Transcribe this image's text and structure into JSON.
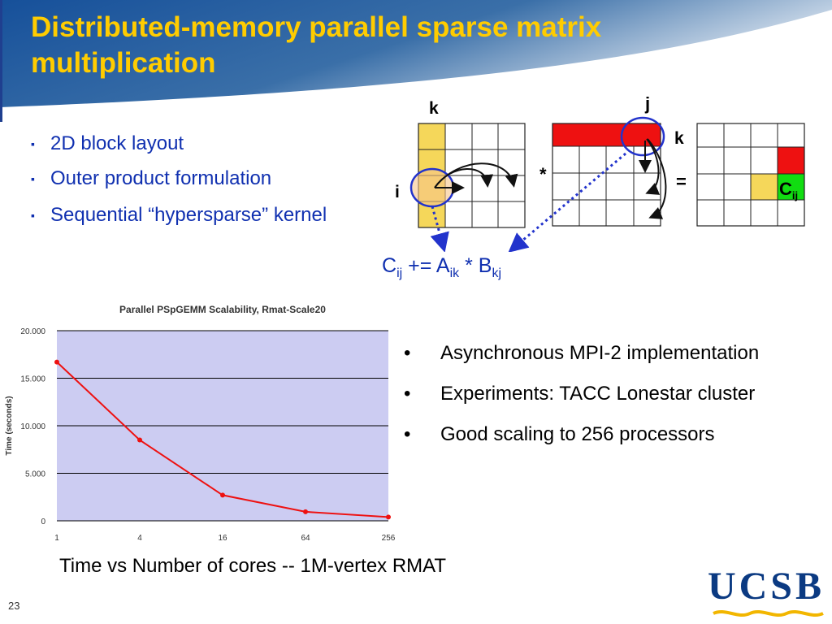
{
  "slide": {
    "title": "Distributed-memory parallel sparse matrix multiplication",
    "number": "23",
    "colors": {
      "title": "#ffcc00",
      "header_bg": "#2f5f9a",
      "bullet_text": "#1030b0"
    }
  },
  "bullets": [
    {
      "marker": "▪",
      "text": "2D block layout"
    },
    {
      "marker": "▪",
      "text": "Outer product formulation"
    },
    {
      "marker": "▪",
      "text": "Sequential “hypersparse” kernel"
    }
  ],
  "diagram": {
    "label_k_top": "k",
    "label_i": "i",
    "label_j": "j",
    "label_k_right": "k",
    "op_multiply": "*",
    "op_equals": "=",
    "cell_c": "C",
    "cell_c_sub": "ij",
    "colors": {
      "a_column": "#f5d75a",
      "b_row": "#ee1111",
      "c_cell": "#11dd11",
      "circle": "#2233cc",
      "arrow": "#2233cc"
    }
  },
  "formula": {
    "c": "C",
    "c_sub": "ij",
    "op": " += ",
    "a": "A",
    "a_sub": "ik",
    "times": " * ",
    "b": "B",
    "b_sub": "kj"
  },
  "chart_data": {
    "type": "line",
    "title": "Parallel PSpGEMM Scalability, Rmat-Scale20",
    "xlabel": "",
    "ylabel": "Time (seconds)",
    "categories": [
      "1",
      "4",
      "16",
      "64",
      "256"
    ],
    "series": [
      {
        "values": [
          16.7,
          8.5,
          2.7,
          0.95,
          0.4
        ],
        "color": "#ee1111"
      }
    ],
    "y_ticks": [
      "0",
      "5.000",
      "10.000",
      "15.000",
      "20.000"
    ],
    "ylim": [
      0,
      20
    ],
    "x_scale": "log",
    "grid": true,
    "plot_bg": "#ccccf2"
  },
  "right_bullets": [
    {
      "marker": "•",
      "text": "Asynchronous MPI-2 implementation"
    },
    {
      "marker": "•",
      "text": "Experiments: TACC Lonestar cluster"
    },
    {
      "marker": "•",
      "text": "Good scaling to 256 processors"
    }
  ],
  "caption": "Time vs Number of cores -- 1M-vertex RMAT",
  "logo": {
    "text": "UCSB"
  }
}
